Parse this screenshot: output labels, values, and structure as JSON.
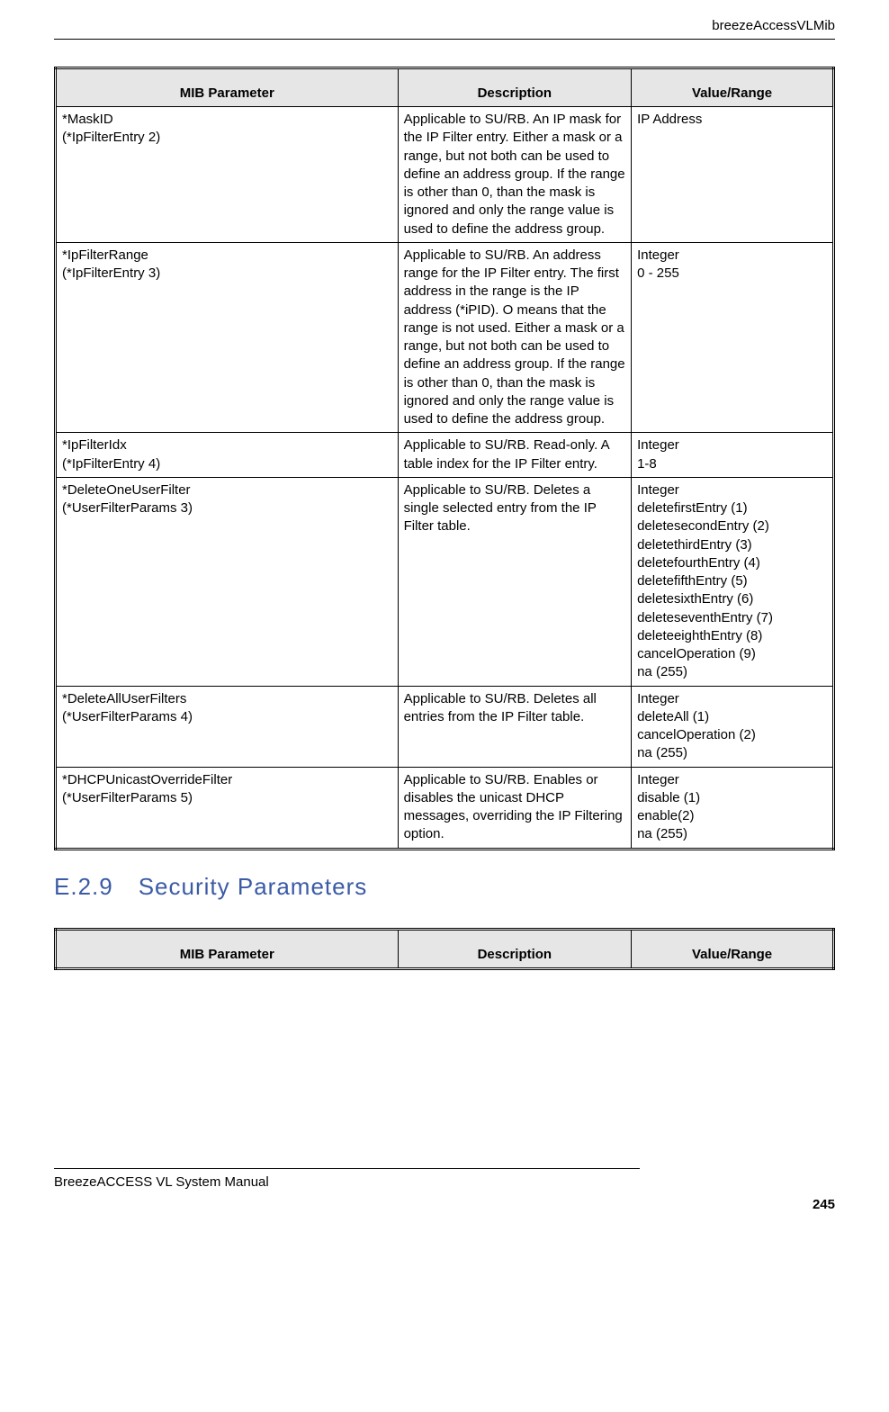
{
  "header": {
    "right": "breezeAccessVLMib"
  },
  "footer": {
    "left": "BreezeACCESS VL System Manual",
    "page": "245"
  },
  "table1": {
    "headers": [
      "MIB Parameter",
      "Description",
      "Value/Range"
    ],
    "rows": [
      {
        "param": [
          "*MaskID",
          "(*IpFilterEntry 2)"
        ],
        "desc": [
          "Applicable to SU/RB. An IP mask for the IP Filter entry. Either a mask or a range, but not both can be used to define an address group. If the range is other than 0, than the mask is ignored and only the range value is used to define the address group."
        ],
        "val": [
          "IP Address"
        ]
      },
      {
        "param": [
          "*IpFilterRange",
          "(*IpFilterEntry 3)"
        ],
        "desc": [
          "Applicable to SU/RB. An address range for the IP Filter entry. The first address in the range is the IP address (*iPID). O means that the range is not used. Either a mask or a range, but not both can be used to define an address group. If the range is other than 0, than the mask is ignored and only the range value is used to define the address group."
        ],
        "val": [
          "Integer",
          "0 - 255"
        ]
      },
      {
        "param": [
          "*IpFilterIdx",
          "(*IpFilterEntry 4)"
        ],
        "desc": [
          "Applicable to SU/RB. Read-only. A table index for the IP Filter entry."
        ],
        "val": [
          "Integer",
          "1-8"
        ]
      },
      {
        "param": [
          "*DeleteOneUserFilter",
          "(*UserFilterParams 3)"
        ],
        "desc": [
          "Applicable to SU/RB. Deletes a single selected entry from the IP Filter table."
        ],
        "val": [
          "Integer",
          "deletefirstEntry (1)",
          "deletesecondEntry (2)",
          "deletethirdEntry (3)",
          "deletefourthEntry (4)",
          "deletefifthEntry (5)",
          "deletesixthEntry (6)",
          "deleteseventhEntry (7)",
          "deleteeighthEntry (8)",
          "cancelOperation (9)",
          "na (255)"
        ]
      },
      {
        "param": [
          "*DeleteAllUserFilters",
          "(*UserFilterParams 4)"
        ],
        "desc": [
          "Applicable to SU/RB. Deletes all entries from the IP Filter table."
        ],
        "val": [
          "Integer",
          "deleteAll (1)",
          "cancelOperation (2)",
          "na (255)"
        ]
      },
      {
        "param": [
          "*DHCPUnicastOverrideFilter",
          "(*UserFilterParams 5)"
        ],
        "desc": [
          "Applicable to SU/RB. Enables or disables the unicast DHCP messages, overriding the IP Filtering option."
        ],
        "val": [
          "Integer",
          "disable (1)",
          "enable(2)",
          "na (255)"
        ]
      }
    ]
  },
  "section": {
    "number": "E.2.9",
    "title": "Security Parameters"
  },
  "table2": {
    "headers": [
      "MIB Parameter",
      "Description",
      "Value/Range"
    ]
  }
}
